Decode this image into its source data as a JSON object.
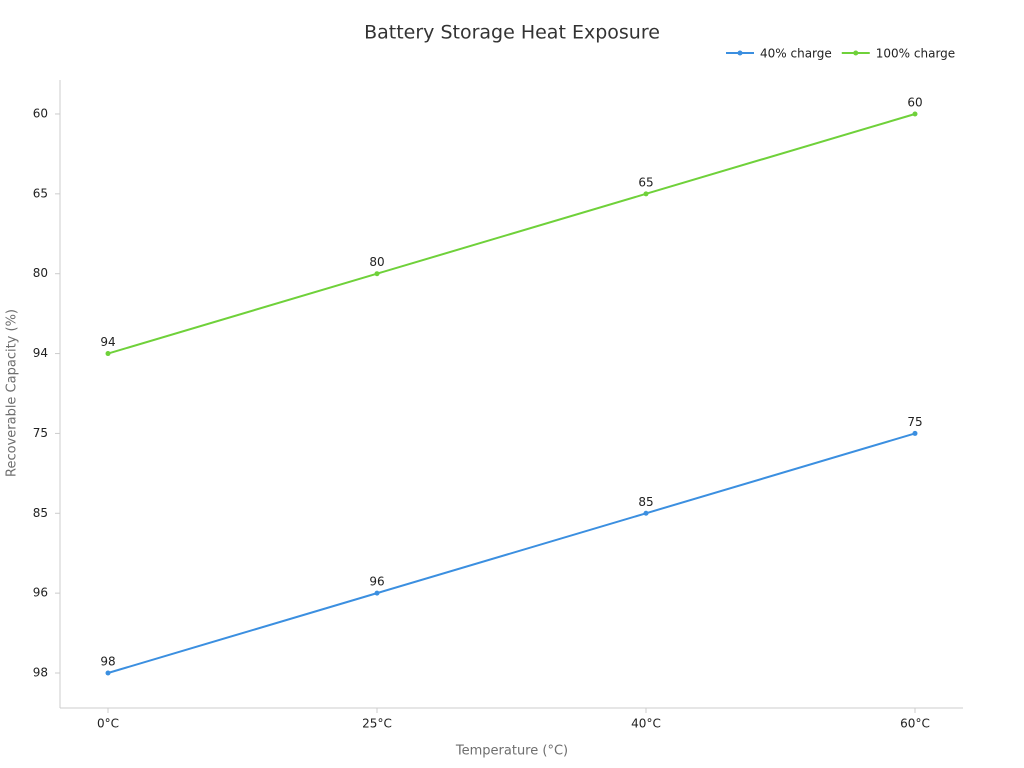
{
  "chart_data": {
    "type": "line",
    "title": "Battery Storage Heat Exposure",
    "x_label": "Temperature (°C)",
    "y_label": "Recoverable Capacity (%)",
    "categories": [
      "0°C",
      "25°C",
      "40°C",
      "60°C"
    ],
    "y_categories": [
      98,
      96,
      85,
      75,
      94,
      80,
      65,
      60
    ],
    "series": [
      {
        "name": "40% charge",
        "color": "#3b8fe0",
        "values": [
          98,
          96,
          85,
          75
        ]
      },
      {
        "name": "100% charge",
        "color": "#6fd13a",
        "values": [
          94,
          80,
          65,
          60
        ]
      }
    ],
    "legend": "top-right",
    "data_labels": true
  }
}
